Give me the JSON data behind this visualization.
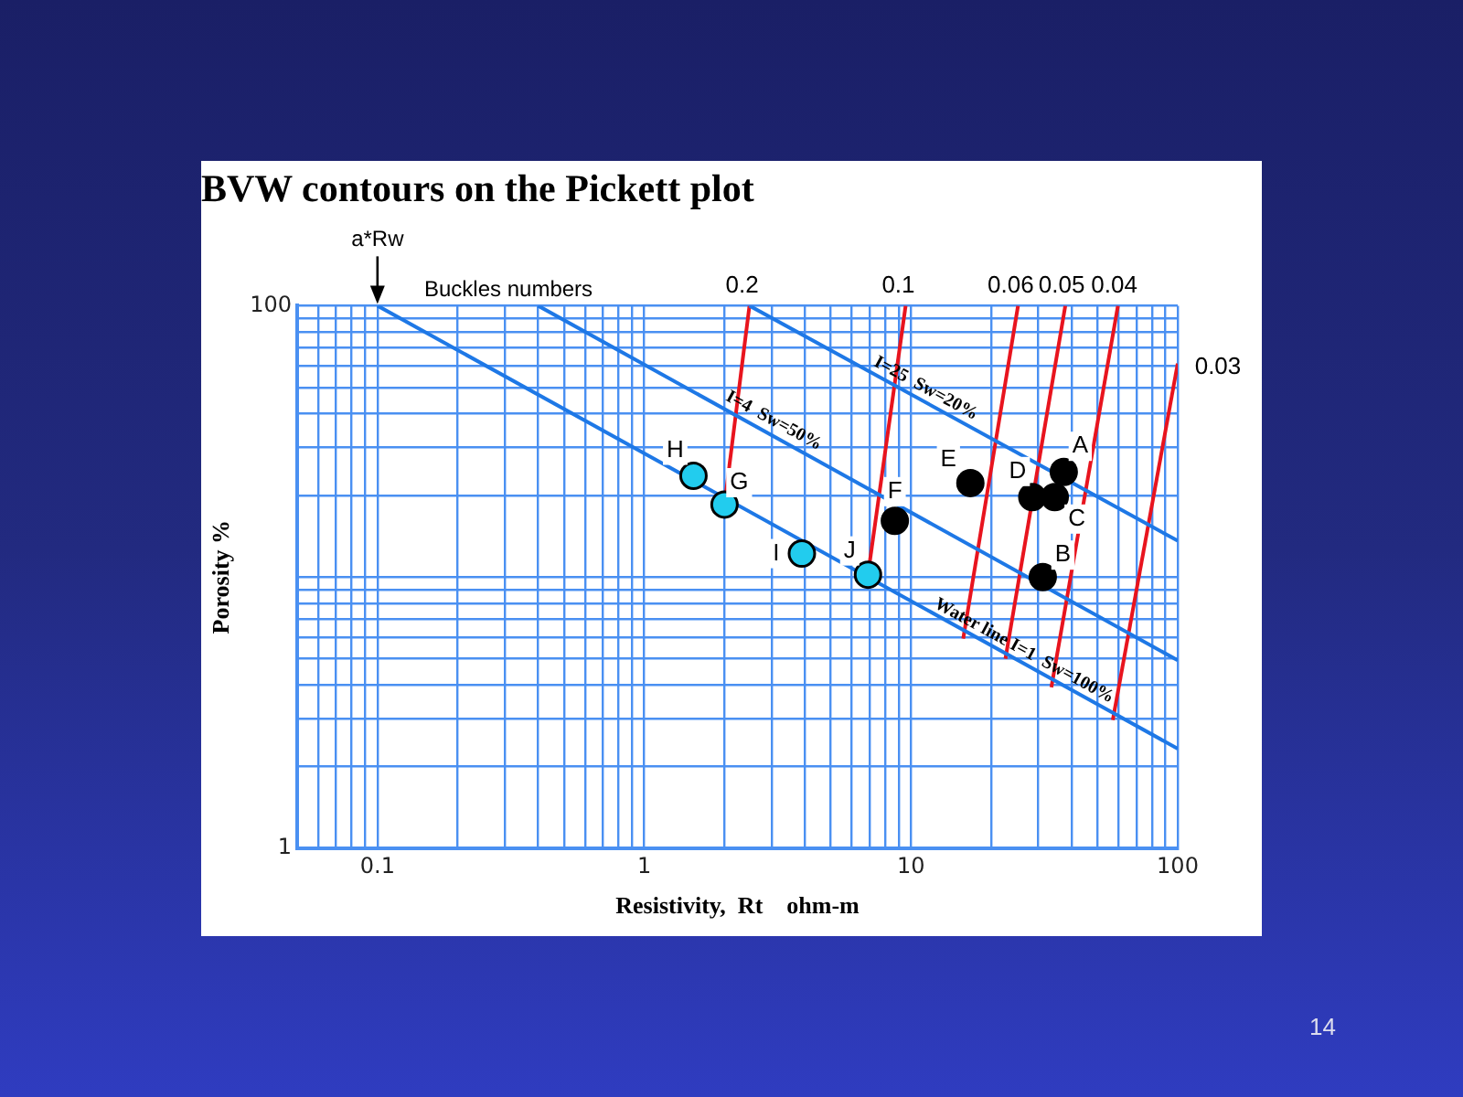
{
  "chart_data": {
    "type": "scatter",
    "title": "BVW contours on the Pickett plot",
    "xlabel": "Resistivity,  Rt    ohm-m",
    "ylabel": "Porosity %",
    "log": "xy",
    "grid": true,
    "legend": false,
    "marker": "circle",
    "xlim": [
      0.05,
      100
    ],
    "ylim": [
      1,
      100
    ],
    "xticks": [
      {
        "value": 0.05,
        "label": null
      },
      {
        "value": 0.06,
        "label": null
      },
      {
        "value": 0.07,
        "label": null
      },
      {
        "value": 0.08,
        "label": null
      },
      {
        "value": 0.09,
        "label": null
      },
      0.1,
      {
        "value": 0.2,
        "label": null
      },
      {
        "value": 0.3,
        "label": null
      },
      {
        "value": 0.4,
        "label": null
      },
      {
        "value": 0.5,
        "label": null
      },
      {
        "value": 0.6,
        "label": null
      },
      {
        "value": 0.7,
        "label": null
      },
      {
        "value": 0.8,
        "label": null
      },
      {
        "value": 0.9,
        "label": null
      },
      1,
      {
        "value": 2,
        "label": null
      },
      {
        "value": 3,
        "label": null
      },
      {
        "value": 4,
        "label": null
      },
      {
        "value": 5,
        "label": null
      },
      {
        "value": 6,
        "label": null
      },
      {
        "value": 7,
        "label": null
      },
      {
        "value": 8,
        "label": null
      },
      {
        "value": 9,
        "label": null
      },
      10,
      {
        "value": 20,
        "label": null
      },
      {
        "value": 30,
        "label": null
      },
      {
        "value": 40,
        "label": null
      },
      {
        "value": 50,
        "label": null
      },
      {
        "value": 60,
        "label": null
      },
      {
        "value": 70,
        "label": null
      },
      {
        "value": 80,
        "label": null
      },
      {
        "value": 90,
        "label": null
      },
      100
    ],
    "yticks": [
      1,
      {
        "value": 2,
        "label": null
      },
      {
        "value": 3,
        "label": null
      },
      {
        "value": 4,
        "label": null
      },
      {
        "value": 5,
        "label": null
      },
      {
        "value": 6,
        "label": null
      },
      {
        "value": 7,
        "label": null
      },
      {
        "value": 8,
        "label": null
      },
      {
        "value": 9,
        "label": null
      },
      {
        "value": 10,
        "label": null
      },
      {
        "value": 20,
        "label": null
      },
      {
        "value": 30,
        "label": null
      },
      {
        "value": 40,
        "label": null
      },
      {
        "value": 50,
        "label": null
      },
      {
        "value": 60,
        "label": null
      },
      {
        "value": 70,
        "label": null
      },
      {
        "value": 80,
        "label": null
      },
      {
        "value": 90,
        "label": null
      },
      100
    ],
    "series": [
      {
        "type": "line",
        "marker": "none",
        "color": "#1e78e6",
        "x": [
          0.1,
          100
        ],
        "values": [
          100,
          2.33
        ]
      },
      {
        "type": "line",
        "marker": "none",
        "color": "#1e78e6",
        "x": [
          0.4,
          100
        ],
        "values": [
          100,
          4.93
        ]
      },
      {
        "type": "line",
        "marker": "none",
        "color": "#1e78e6",
        "x": [
          2.48,
          100
        ],
        "values": [
          100,
          13.6
        ]
      },
      {
        "type": "line",
        "marker": "none",
        "color": "#e8141e",
        "x": [
          2.48,
          2.0
        ],
        "values": [
          100,
          18.5
        ]
      },
      {
        "type": "line",
        "marker": "none",
        "color": "#e8141e",
        "x": [
          9.55,
          6.9
        ],
        "values": [
          100,
          10.2
        ]
      },
      {
        "type": "line",
        "marker": "none",
        "color": "#e8141e",
        "x": [
          25.2,
          15.7
        ],
        "values": [
          100,
          5.93
        ]
      },
      {
        "type": "line",
        "marker": "none",
        "color": "#e8141e",
        "x": [
          37.9,
          22.6
        ],
        "values": [
          100,
          5.0
        ]
      },
      {
        "type": "line",
        "marker": "none",
        "color": "#e8141e",
        "x": [
          59.7,
          33.6
        ],
        "values": [
          100,
          3.92
        ]
      },
      {
        "type": "line",
        "marker": "none",
        "color": "#e8141e",
        "x": [
          100,
          57.1
        ],
        "values": [
          61.2,
          2.97
        ]
      },
      {
        "type": "scatter",
        "color": "#22ccee",
        "x": [
          1.53,
          2.0,
          3.9,
          6.9
        ],
        "values": [
          23.6,
          18.5,
          12.2,
          10.2
        ]
      },
      {
        "type": "scatter",
        "color": "#000000",
        "x": [
          8.7,
          16.7,
          28.5,
          34.6,
          37.4,
          31.2
        ],
        "values": [
          16.1,
          22.2,
          19.7,
          19.7,
          24.4,
          10
        ]
      }
    ],
    "annotations": [
      {
        "text": "H",
        "x": 1.53,
        "y": 23.6
      },
      {
        "text": "G",
        "x": 2.0,
        "y": 18.5
      },
      {
        "text": "I",
        "x": 3.9,
        "y": 12.2
      },
      {
        "text": "J",
        "x": 6.9,
        "y": 10.2
      },
      {
        "text": "F",
        "x": 8.7,
        "y": 16.1
      },
      {
        "text": "E",
        "x": 16.7,
        "y": 22.2
      },
      {
        "text": "D",
        "x": 28.5,
        "y": 19.7
      },
      {
        "text": "C",
        "x": 34.6,
        "y": 19.7
      },
      {
        "text": "A",
        "x": 37.4,
        "y": 24.4
      },
      {
        "text": "B",
        "x": 31.2,
        "y": 10
      },
      {
        "text": "0.2",
        "x": 2.48,
        "y": 100
      },
      {
        "text": "0.1",
        "x": 9.55,
        "y": 100
      },
      {
        "text": "0.06",
        "x": 25.2,
        "y": 100
      },
      {
        "text": "0.05",
        "x": 37.9,
        "y": 100
      },
      {
        "text": "0.04",
        "x": 59.7,
        "y": 100
      },
      {
        "text": "0.03",
        "x": 100,
        "y": 61.2
      },
      {
        "text": "I=25  Sw=20%",
        "x": 10.8,
        "y": 45
      },
      {
        "text": "I=4  Sw=50%",
        "x": 2.9,
        "y": 34.2
      },
      {
        "text": "Water line I=1  Sw=100%",
        "x": 25.2,
        "y": 4.86
      },
      {
        "text": "a*Rw",
        "x": 0.1,
        "y": 100
      },
      "Buckles numbers",
      "14"
    ]
  }
}
